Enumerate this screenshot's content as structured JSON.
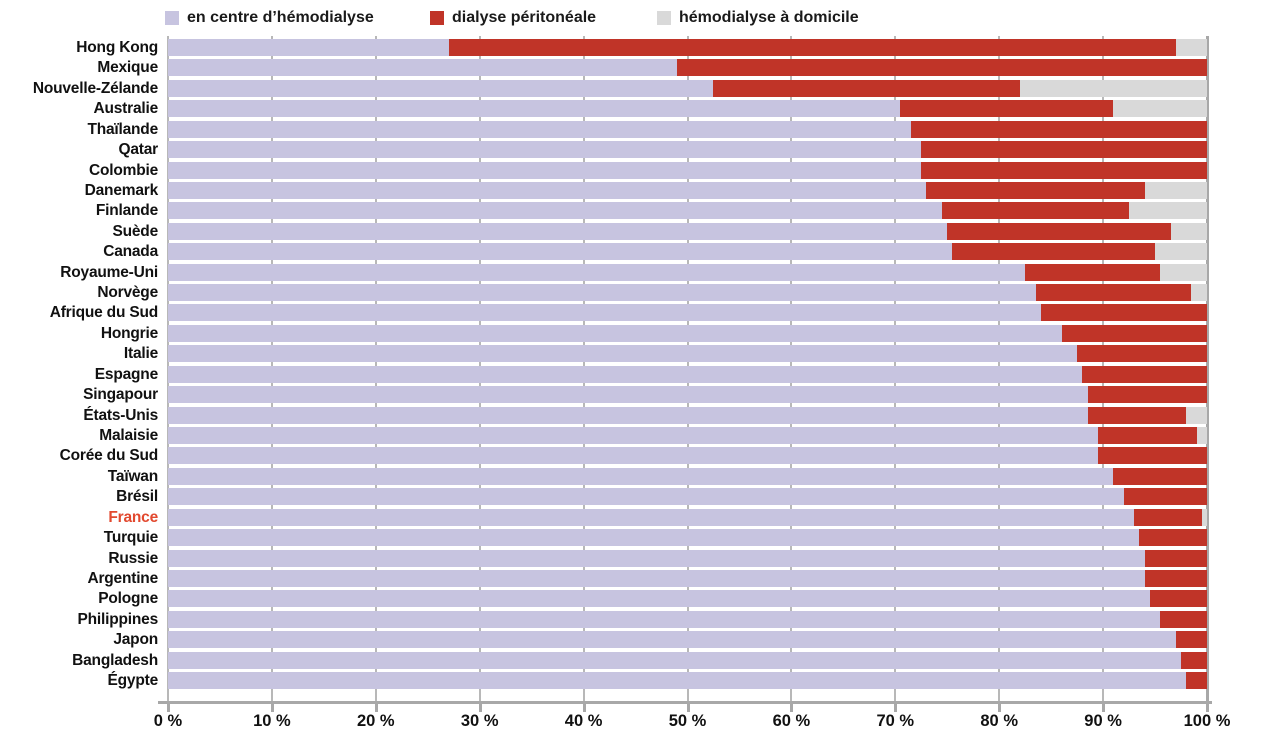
{
  "legend": [
    {
      "label": "en centre d’hémodialyse",
      "color": "#c7c4e0"
    },
    {
      "label": "dialyse péritonéale",
      "color": "#c03428"
    },
    {
      "label": "hémodialyse à domicile",
      "color": "#d9d9d9"
    }
  ],
  "chart_data": {
    "type": "bar",
    "orientation": "horizontal",
    "stacked": true,
    "unit": "%",
    "title": "",
    "xlabel": "",
    "ylabel": "",
    "categories": [
      "Hong Kong",
      "Mexique",
      "Nouvelle-Zélande",
      "Australie",
      "Thaïlande",
      "Qatar",
      "Colombie",
      "Danemark",
      "Finlande",
      "Suède",
      "Canada",
      "Royaume-Uni",
      "Norvège",
      "Afrique du Sud",
      "Hongrie",
      "Italie",
      "Espagne",
      "Singapour",
      "États-Unis",
      "Malaisie",
      "Corée du Sud",
      "Taïwan",
      "Brésil",
      "France",
      "Turquie",
      "Russie",
      "Argentine",
      "Pologne",
      "Philippines",
      "Japon",
      "Bangladesh",
      "Égypte"
    ],
    "highlighted_category": "France",
    "series": [
      {
        "name": "en centre d’hémodialyse",
        "color": "#c7c4e0",
        "values": [
          27,
          49,
          52.5,
          70.5,
          71.5,
          72.5,
          72.5,
          73,
          74.5,
          75,
          75.5,
          82.5,
          83.5,
          84,
          86,
          87.5,
          88,
          88.5,
          88.5,
          89.5,
          89.5,
          91,
          92,
          93,
          93.5,
          94,
          94,
          94.5,
          95.5,
          97,
          97.5,
          98
        ]
      },
      {
        "name": "dialyse péritonéale",
        "color": "#c03428",
        "values": [
          70,
          51,
          29.5,
          20.5,
          28.5,
          27.5,
          27.5,
          21,
          18,
          21.5,
          19.5,
          13,
          15,
          16,
          14,
          12.5,
          12,
          11.5,
          9.5,
          9.5,
          10.5,
          9,
          8,
          6.5,
          6.5,
          6,
          6,
          5.5,
          4.5,
          3,
          2.5,
          2
        ]
      },
      {
        "name": "hémodialyse à domicile",
        "color": "#d9d9d9",
        "values": [
          3,
          0,
          18,
          9,
          0,
          0,
          0,
          6,
          7.5,
          3.5,
          5,
          4.5,
          1.5,
          0,
          0,
          0,
          0,
          0,
          2,
          1,
          0,
          0,
          0,
          0.5,
          0,
          0,
          0,
          0,
          0,
          0,
          0,
          0
        ]
      }
    ],
    "x_axis": {
      "min": 0,
      "max": 100,
      "tick_step": 10,
      "tick_labels": [
        "0 %",
        "10 %",
        "20 %",
        "30 %",
        "40 %",
        "50 %",
        "60 %",
        "70 %",
        "80 %",
        "90 %",
        "100 %"
      ],
      "grid": true
    },
    "legend_position": "top"
  },
  "colors": {
    "background": "#ffffff",
    "text": "#111111",
    "highlighted_label": "#e2492f",
    "gridline": "#b8b8b8",
    "axis": "#a8a8a8"
  }
}
